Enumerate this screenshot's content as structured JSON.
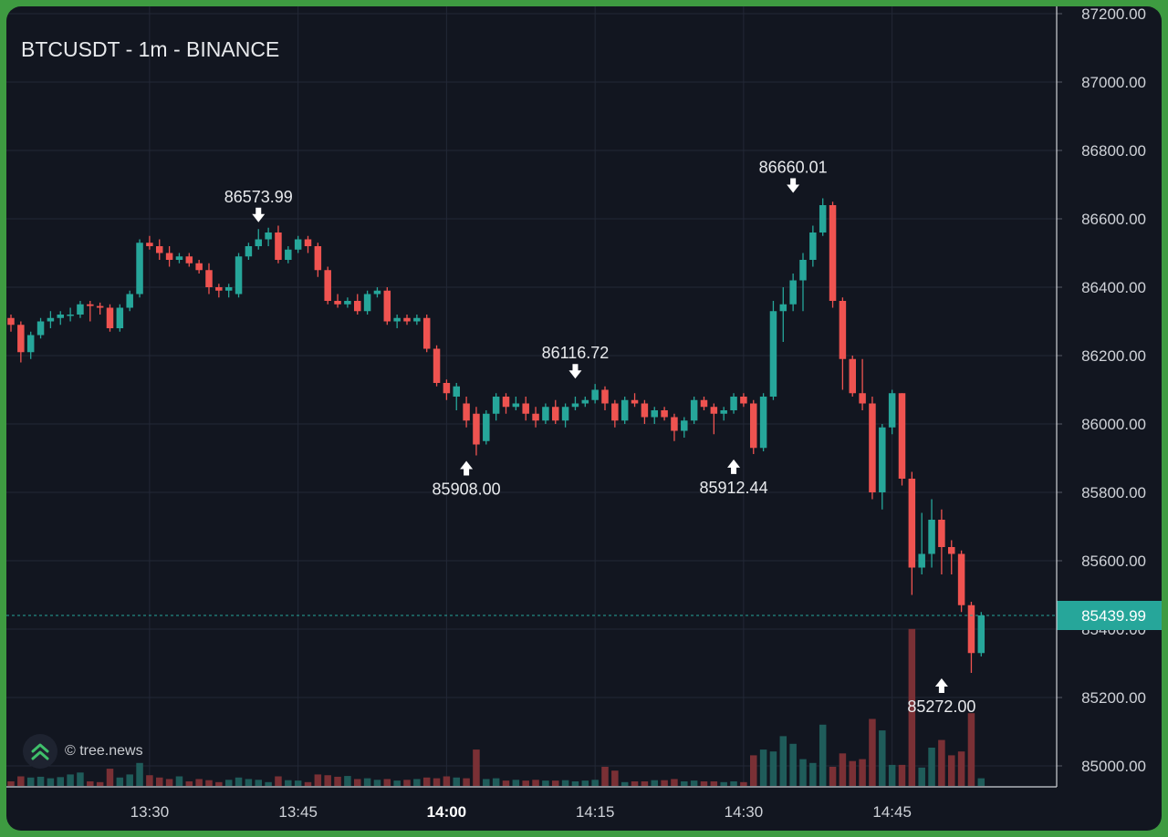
{
  "header": {
    "title": "BTCUSDT - 1m - BINANCE"
  },
  "watermark": {
    "text": "© tree.news"
  },
  "colors": {
    "up": "#26a69a",
    "down": "#ef5350",
    "background": "#121620",
    "grid": "#232836",
    "frame": "#3e9b41"
  },
  "chart_data": {
    "type": "candlestick",
    "title": "BTCUSDT - 1m - BINANCE",
    "ylim": [
      84944,
      87225
    ],
    "y_ticks": [
      "87200.00",
      "87000.00",
      "86800.00",
      "86600.00",
      "86400.00",
      "86200.00",
      "86000.00",
      "85800.00",
      "85600.00",
      "85400.00",
      "85200.00",
      "85000.00"
    ],
    "x_ticks": [
      {
        "label": "13:30",
        "index": 14,
        "bold": false
      },
      {
        "label": "13:45",
        "index": 29,
        "bold": false
      },
      {
        "label": "14:00",
        "index": 44,
        "bold": true
      },
      {
        "label": "14:15",
        "index": 59,
        "bold": false
      },
      {
        "label": "14:30",
        "index": 74,
        "bold": false
      },
      {
        "label": "14:45",
        "index": 89,
        "bold": false
      }
    ],
    "last_price": "85439.99",
    "last_price_value": 85439.99,
    "annotations": [
      {
        "label": "86573.99",
        "index": 25,
        "value": 86573.99,
        "kind": "high"
      },
      {
        "label": "85908.00",
        "index": 46,
        "value": 85908.0,
        "kind": "low"
      },
      {
        "label": "86116.72",
        "index": 57,
        "value": 86116.72,
        "kind": "high"
      },
      {
        "label": "85912.44",
        "index": 73,
        "value": 85912.44,
        "kind": "low"
      },
      {
        "label": "86660.01",
        "index": 79,
        "value": 86660.01,
        "kind": "high"
      },
      {
        "label": "85272.00",
        "index": 94,
        "value": 85272.0,
        "kind": "low"
      }
    ],
    "candles": [
      [
        86310,
        86320,
        86270,
        86290,
        0.12
      ],
      [
        86290,
        86300,
        86180,
        86210,
        0.25
      ],
      [
        86210,
        86270,
        86190,
        86260,
        0.22
      ],
      [
        86260,
        86310,
        86250,
        86300,
        0.24
      ],
      [
        86300,
        86330,
        86280,
        86310,
        0.2
      ],
      [
        86310,
        86330,
        86290,
        86320,
        0.23
      ],
      [
        86320,
        86340,
        86300,
        86320,
        0.3
      ],
      [
        86320,
        86360,
        86310,
        86350,
        0.35
      ],
      [
        86350,
        86360,
        86300,
        86345,
        0.12
      ],
      [
        86345,
        86355,
        86320,
        86340,
        0.1
      ],
      [
        86340,
        86350,
        86270,
        86280,
        0.45
      ],
      [
        86280,
        86350,
        86270,
        86340,
        0.22
      ],
      [
        86340,
        86390,
        86330,
        86380,
        0.3
      ],
      [
        86380,
        86540,
        86370,
        86530,
        0.6
      ],
      [
        86530,
        86550,
        86510,
        86520,
        0.28
      ],
      [
        86520,
        86540,
        86480,
        86500,
        0.22
      ],
      [
        86500,
        86520,
        86460,
        86480,
        0.18
      ],
      [
        86480,
        86500,
        86470,
        86490,
        0.25
      ],
      [
        86490,
        86500,
        86460,
        86470,
        0.12
      ],
      [
        86470,
        86480,
        86440,
        86450,
        0.18
      ],
      [
        86450,
        86470,
        86380,
        86400,
        0.15
      ],
      [
        86400,
        86410,
        86370,
        86390,
        0.1
      ],
      [
        86390,
        86410,
        86370,
        86400,
        0.16
      ],
      [
        86380,
        86500,
        86370,
        86490,
        0.22
      ],
      [
        86490,
        86530,
        86480,
        86520,
        0.18
      ],
      [
        86520,
        86570,
        86510,
        86540,
        0.16
      ],
      [
        86540,
        86574,
        86520,
        86560,
        0.1
      ],
      [
        86560,
        86580,
        86470,
        86480,
        0.25
      ],
      [
        86480,
        86520,
        86470,
        86510,
        0.15
      ],
      [
        86510,
        86550,
        86500,
        86540,
        0.14
      ],
      [
        86540,
        86550,
        86500,
        86520,
        0.1
      ],
      [
        86520,
        86530,
        86430,
        86450,
        0.3
      ],
      [
        86450,
        86460,
        86350,
        86360,
        0.28
      ],
      [
        86360,
        86380,
        86340,
        86350,
        0.24
      ],
      [
        86350,
        86370,
        86340,
        86360,
        0.26
      ],
      [
        86360,
        86380,
        86320,
        86330,
        0.18
      ],
      [
        86330,
        86390,
        86320,
        86380,
        0.2
      ],
      [
        86380,
        86400,
        86370,
        86390,
        0.16
      ],
      [
        86390,
        86400,
        86290,
        86300,
        0.18
      ],
      [
        86300,
        86320,
        86280,
        86310,
        0.14
      ],
      [
        86310,
        86320,
        86290,
        86300,
        0.16
      ],
      [
        86300,
        86320,
        86290,
        86310,
        0.18
      ],
      [
        86310,
        86320,
        86210,
        86220,
        0.22
      ],
      [
        86220,
        86230,
        86110,
        86120,
        0.2
      ],
      [
        86120,
        86130,
        86070,
        86090,
        0.25
      ],
      [
        86080,
        86120,
        86040,
        86110,
        0.22
      ],
      [
        86060,
        86080,
        85990,
        86010,
        0.2
      ],
      [
        86030,
        86050,
        85908,
        85940,
        0.95
      ],
      [
        85950,
        86040,
        85940,
        86030,
        0.18
      ],
      [
        86030,
        86090,
        86010,
        86080,
        0.2
      ],
      [
        86080,
        86090,
        86030,
        86050,
        0.14
      ],
      [
        86050,
        86080,
        86040,
        86060,
        0.16
      ],
      [
        86060,
        86080,
        86010,
        86030,
        0.14
      ],
      [
        86030,
        86050,
        85990,
        86010,
        0.16
      ],
      [
        86010,
        86060,
        86000,
        86050,
        0.14
      ],
      [
        86050,
        86070,
        86000,
        86010,
        0.14
      ],
      [
        86010,
        86060,
        85990,
        86050,
        0.15
      ],
      [
        86050,
        86080,
        86040,
        86060,
        0.12
      ],
      [
        86060,
        86080,
        86050,
        86070,
        0.14
      ],
      [
        86070,
        86117,
        86060,
        86100,
        0.16
      ],
      [
        86100,
        86110,
        86040,
        86060,
        0.5
      ],
      [
        86060,
        86070,
        85990,
        86010,
        0.4
      ],
      [
        86010,
        86080,
        86000,
        86070,
        0.1
      ],
      [
        86070,
        86090,
        86050,
        86060,
        0.12
      ],
      [
        86060,
        86070,
        86000,
        86020,
        0.12
      ],
      [
        86020,
        86050,
        86000,
        86040,
        0.15
      ],
      [
        86040,
        86050,
        86010,
        86020,
        0.15
      ],
      [
        86020,
        86030,
        85950,
        85980,
        0.18
      ],
      [
        85980,
        86020,
        85960,
        86010,
        0.12
      ],
      [
        86010,
        86080,
        86000,
        86070,
        0.14
      ],
      [
        86070,
        86080,
        86040,
        86050,
        0.12
      ],
      [
        86050,
        86060,
        85970,
        86030,
        0.12
      ],
      [
        86030,
        86050,
        86010,
        86040,
        0.1
      ],
      [
        86040,
        86090,
        86030,
        86080,
        0.12
      ],
      [
        86080,
        86090,
        86050,
        86060,
        0.1
      ],
      [
        86060,
        86070,
        85912,
        85930,
        0.8
      ],
      [
        85930,
        86090,
        85920,
        86080,
        0.95
      ],
      [
        86080,
        86360,
        86070,
        86330,
        0.9
      ],
      [
        86330,
        86400,
        86240,
        86350,
        1.3
      ],
      [
        86350,
        86440,
        86330,
        86420,
        1.1
      ],
      [
        86420,
        86500,
        86330,
        86480,
        0.7
      ],
      [
        86480,
        86580,
        86460,
        86560,
        0.6
      ],
      [
        86560,
        86660,
        86550,
        86640,
        1.6
      ],
      [
        86640,
        86650,
        86340,
        86360,
        0.5
      ],
      [
        86360,
        86370,
        86100,
        86190,
        0.85
      ],
      [
        86190,
        86200,
        86080,
        86090,
        0.65
      ],
      [
        86090,
        86190,
        86040,
        86060,
        0.7
      ],
      [
        86060,
        86080,
        85780,
        85800,
        1.75
      ],
      [
        85800,
        86000,
        85750,
        85990,
        1.45
      ],
      [
        85990,
        86100,
        85970,
        86090,
        0.55
      ],
      [
        86090,
        86090,
        85820,
        85840,
        0.55
      ],
      [
        85840,
        85860,
        85500,
        85580,
        4.1
      ],
      [
        85580,
        85740,
        85560,
        85620,
        0.48
      ],
      [
        85620,
        85780,
        85580,
        85720,
        1.0
      ],
      [
        85720,
        85750,
        85560,
        85640,
        1.2
      ],
      [
        85640,
        85660,
        85560,
        85620,
        0.8
      ],
      [
        85620,
        85630,
        85450,
        85470,
        0.9
      ],
      [
        85470,
        85480,
        85272,
        85330,
        1.9
      ],
      [
        85330,
        85450,
        85320,
        85440,
        0.2
      ]
    ]
  }
}
